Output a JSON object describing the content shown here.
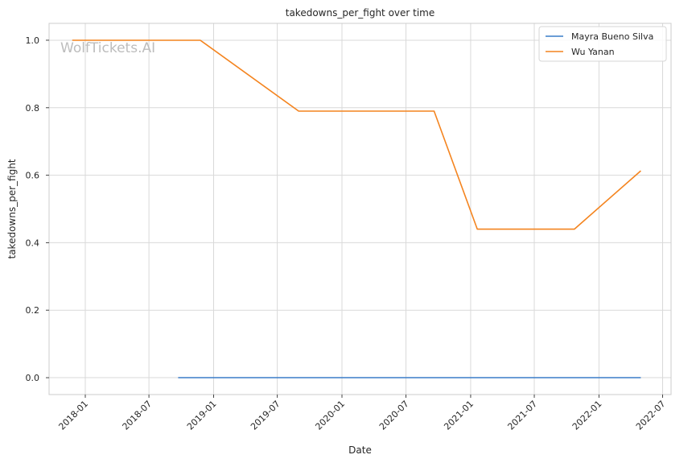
{
  "chart_data": {
    "type": "line",
    "title": "takedowns_per_fight over time",
    "xlabel": "Date",
    "ylabel": "takedowns_per_fight",
    "watermark": "WolfTickets.AI",
    "x_axis_kind": "date",
    "xlim": [
      "2017-09-20",
      "2022-07-25"
    ],
    "ylim": [
      -0.05,
      1.05
    ],
    "x_ticks": [
      "2018-01",
      "2018-07",
      "2019-01",
      "2019-07",
      "2020-01",
      "2020-07",
      "2021-01",
      "2021-07",
      "2022-01",
      "2022-07"
    ],
    "y_ticks": [
      0.0,
      0.2,
      0.4,
      0.6,
      0.8,
      1.0
    ],
    "y_tick_labels": [
      "0.0",
      "0.2",
      "0.4",
      "0.6",
      "0.8",
      "1.0"
    ],
    "grid": true,
    "legend_position": "top-right",
    "series": [
      {
        "name": "Mayra Bueno Silva",
        "color": "#3a7dc9",
        "points": [
          {
            "x": "2018-09-22",
            "y": 0.0
          },
          {
            "x": "2022-04-30",
            "y": 0.0
          }
        ]
      },
      {
        "name": "Wu Yanan",
        "color": "#f4841f",
        "points": [
          {
            "x": "2017-11-25",
            "y": 1.0
          },
          {
            "x": "2018-11-24",
            "y": 1.0
          },
          {
            "x": "2019-08-31",
            "y": 0.79
          },
          {
            "x": "2020-09-19",
            "y": 0.79
          },
          {
            "x": "2021-01-20",
            "y": 0.44
          },
          {
            "x": "2021-10-23",
            "y": 0.44
          },
          {
            "x": "2022-04-30",
            "y": 0.613
          }
        ]
      }
    ]
  }
}
